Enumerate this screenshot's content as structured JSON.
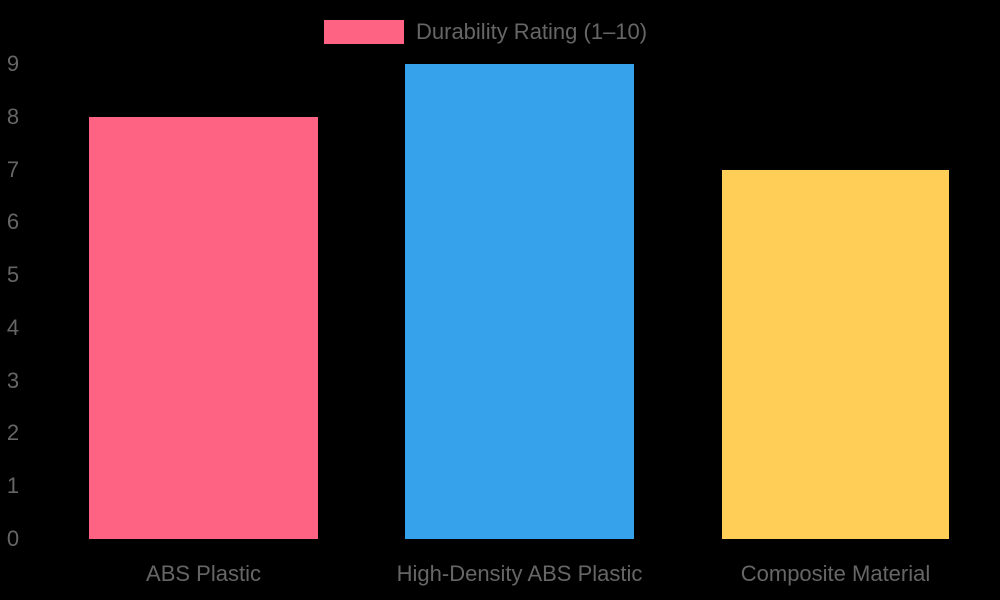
{
  "chart_data": {
    "type": "bar",
    "title": "",
    "xlabel": "",
    "ylabel": "",
    "ylim": [
      0,
      9
    ],
    "yticks": [
      "0",
      "1",
      "2",
      "3",
      "4",
      "5",
      "6",
      "7",
      "8",
      "9"
    ],
    "grid": false,
    "legend_position": "top",
    "categories": [
      "ABS Plastic",
      "High-Density ABS Plastic",
      "Composite Material"
    ],
    "series": [
      {
        "name": "Durability Rating (1–10)",
        "values": [
          8,
          9,
          7
        ],
        "colors": [
          "#ff6384",
          "#36a2eb",
          "#ffce56"
        ]
      }
    ]
  },
  "legend": {
    "label": "Durability Rating (1–10)",
    "color": "#ff6384"
  },
  "colors": {
    "background": "#000000",
    "text": "#666666"
  }
}
